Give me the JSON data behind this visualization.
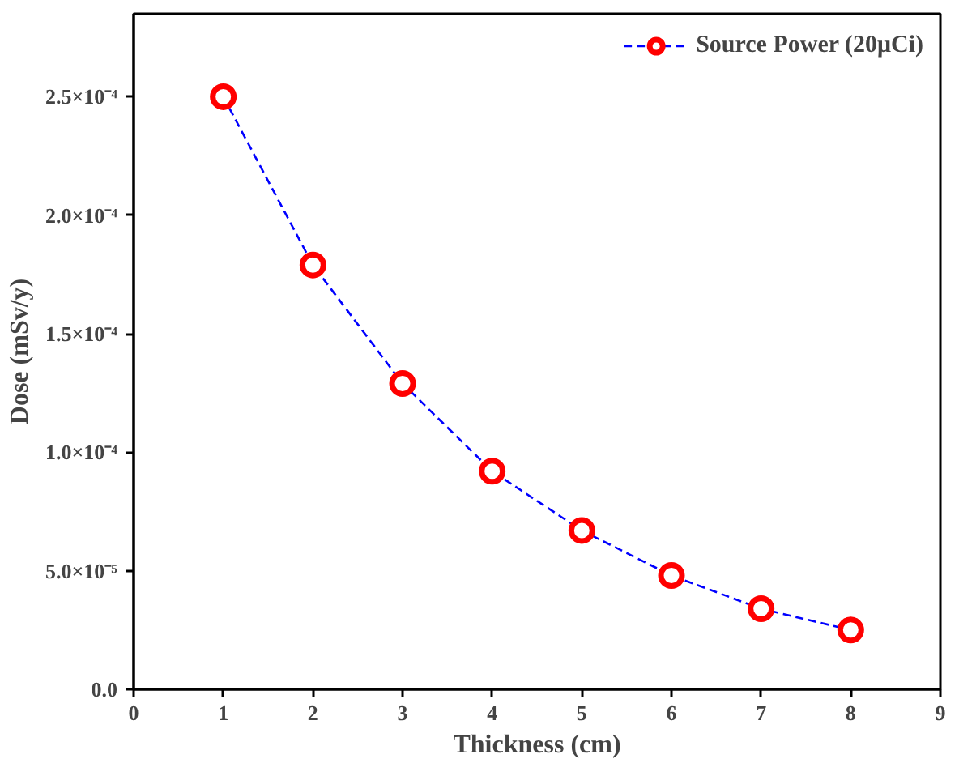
{
  "chart_data": {
    "type": "line",
    "xlabel": "Thickness (cm)",
    "ylabel": "Dose (mSv/y)",
    "xlim": [
      0,
      9
    ],
    "xticks": [
      0,
      1,
      2,
      3,
      4,
      5,
      6,
      7,
      8,
      9
    ],
    "ylim": [
      0,
      0.000285
    ],
    "yticks": [
      {
        "value": 0,
        "label": "0.0"
      },
      {
        "value": 5e-05,
        "label": "5.0×10⁻⁵"
      },
      {
        "value": 0.0001,
        "label": "1.0×10⁻⁴"
      },
      {
        "value": 0.00015,
        "label": "1.5×10⁻⁴"
      },
      {
        "value": 0.0002,
        "label": "2.0×10⁻⁴"
      },
      {
        "value": 0.00025,
        "label": "2.5×10⁻⁴"
      }
    ],
    "grid": false,
    "legend": "top right",
    "series": [
      {
        "color": "#0000ff",
        "line_style": "dashed",
        "marker": "none",
        "x": [
          1,
          2,
          3,
          4,
          5,
          6,
          7,
          8
        ],
        "values": [
          0.00025,
          0.000179,
          0.000129,
          9.2e-05,
          6.7e-05,
          4.8e-05,
          3.4e-05,
          2.5e-05
        ]
      },
      {
        "type": "scatter",
        "name": "Source Power (20μCi)",
        "color": "#ff0000",
        "marker": "circle",
        "x": [
          1,
          2,
          3,
          4,
          5,
          6,
          7,
          8
        ],
        "values": [
          0.00025,
          0.000179,
          0.000129,
          9.2e-05,
          6.7e-05,
          4.8e-05,
          3.4e-05,
          2.5e-05
        ]
      }
    ]
  }
}
